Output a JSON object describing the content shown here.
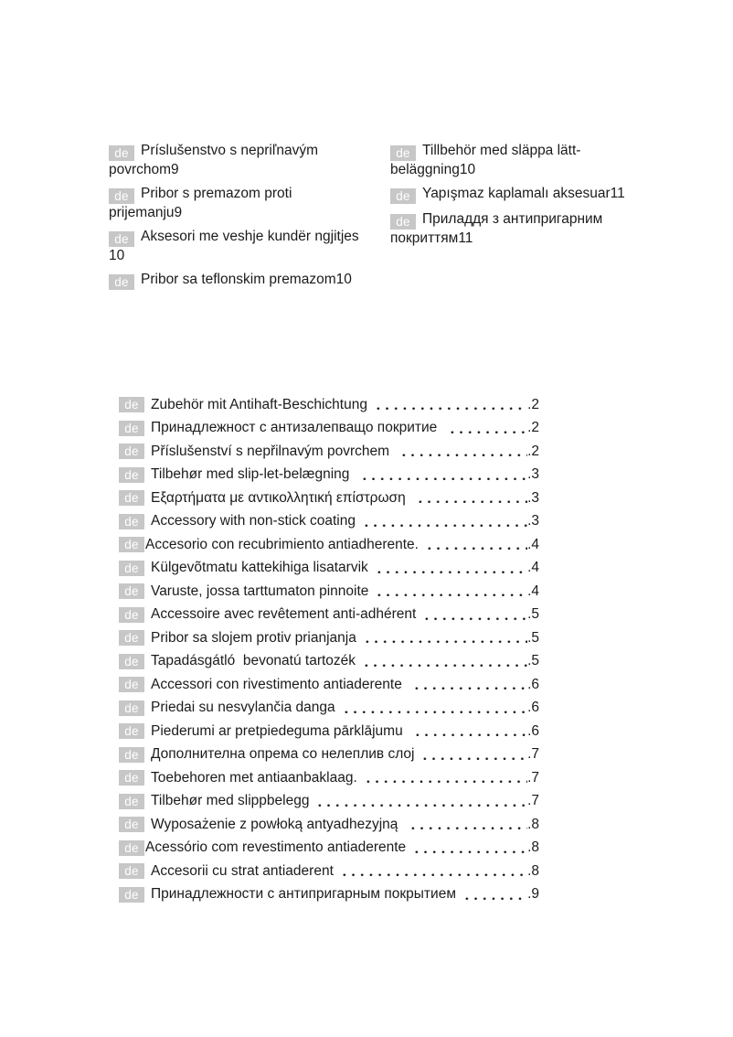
{
  "colors": {
    "page_background": "#ffffff",
    "text": "#1b1b1b",
    "badge_background": "#c7c7c7",
    "badge_text": "#ffffff"
  },
  "badge_label": "de",
  "top_sections": {
    "left": [
      {
        "lines": [
          "Príslušenstvo s nepriľnavým",
          "povrchom9"
        ]
      },
      {
        "lines": [
          "Pribor s premazom proti",
          "prijemanju9"
        ]
      },
      {
        "lines": [
          "Aksesori me veshje kundër ngjitjes",
          "10"
        ]
      },
      {
        "lines": [
          "Pribor sa teflonskim premazom10"
        ]
      }
    ],
    "right": [
      {
        "lines": [
          "Tillbehör med släppa lätt-",
          "beläggning10"
        ]
      },
      {
        "lines": [
          "Yapışmaz kaplamalı aksesuar11"
        ]
      },
      {
        "lines": [
          "Приладдя з антипригарним",
          "покриттям11"
        ]
      }
    ]
  },
  "toc": {
    "rows": [
      {
        "label": "Zubehör mit Antihaft-Beschichtung",
        "page": "2"
      },
      {
        "label": "Принадлежност с антизалепващо покритие ",
        "page": "2"
      },
      {
        "label": "Příslušenství s nepřilnavým povrchem ",
        "page": "2"
      },
      {
        "label": "Tilbehør med slip-let-belægning ",
        "page": "3"
      },
      {
        "label": "Εξαρτήματα με αντικολλητική επίστρωση ",
        "page": "3"
      },
      {
        "label": "Accessory with non-stick coating",
        "page": "3"
      },
      {
        "label": "Accesorio con recubrimiento antiadherente.",
        "page": "4"
      },
      {
        "label": "Külgevõtmatu kattekihiga lisatarvik",
        "page": "4"
      },
      {
        "label": "Varuste, jossa tarttumaton pinnoite",
        "page": "4"
      },
      {
        "label": "Accessoire avec revêtement anti-adhérent",
        "page": "5"
      },
      {
        "label": "Pribor sa slojem protiv prianjanja",
        "page": "5"
      },
      {
        "label": "Tapadásgátló  bevonatú tartozék",
        "page": "5"
      },
      {
        "label": "Accessori con rivestimento antiaderente ",
        "page": "6"
      },
      {
        "label": "Priedai su nesvylančia danga",
        "page": "6"
      },
      {
        "label": "Piederumi ar pretpiedeguma pārklājumu ",
        "page": "6"
      },
      {
        "label": "Дополнителна опрема со нелеплив слој",
        "page": "7"
      },
      {
        "label": "Toebehoren met antiaanbaklaag.",
        "page": "7"
      },
      {
        "label": "Tilbehør med slippbelegg",
        "page": "7"
      },
      {
        "label": "Wyposażenie z powłoką antyadhezyjną ",
        "page": "8"
      },
      {
        "label": "Acessório com revestimento antiaderente",
        "page": "8"
      },
      {
        "label": "Accesorii cu strat antiaderent",
        "page": "8"
      },
      {
        "label": "Принадлежности с антипригарным покрытием",
        "page": "9"
      }
    ]
  }
}
